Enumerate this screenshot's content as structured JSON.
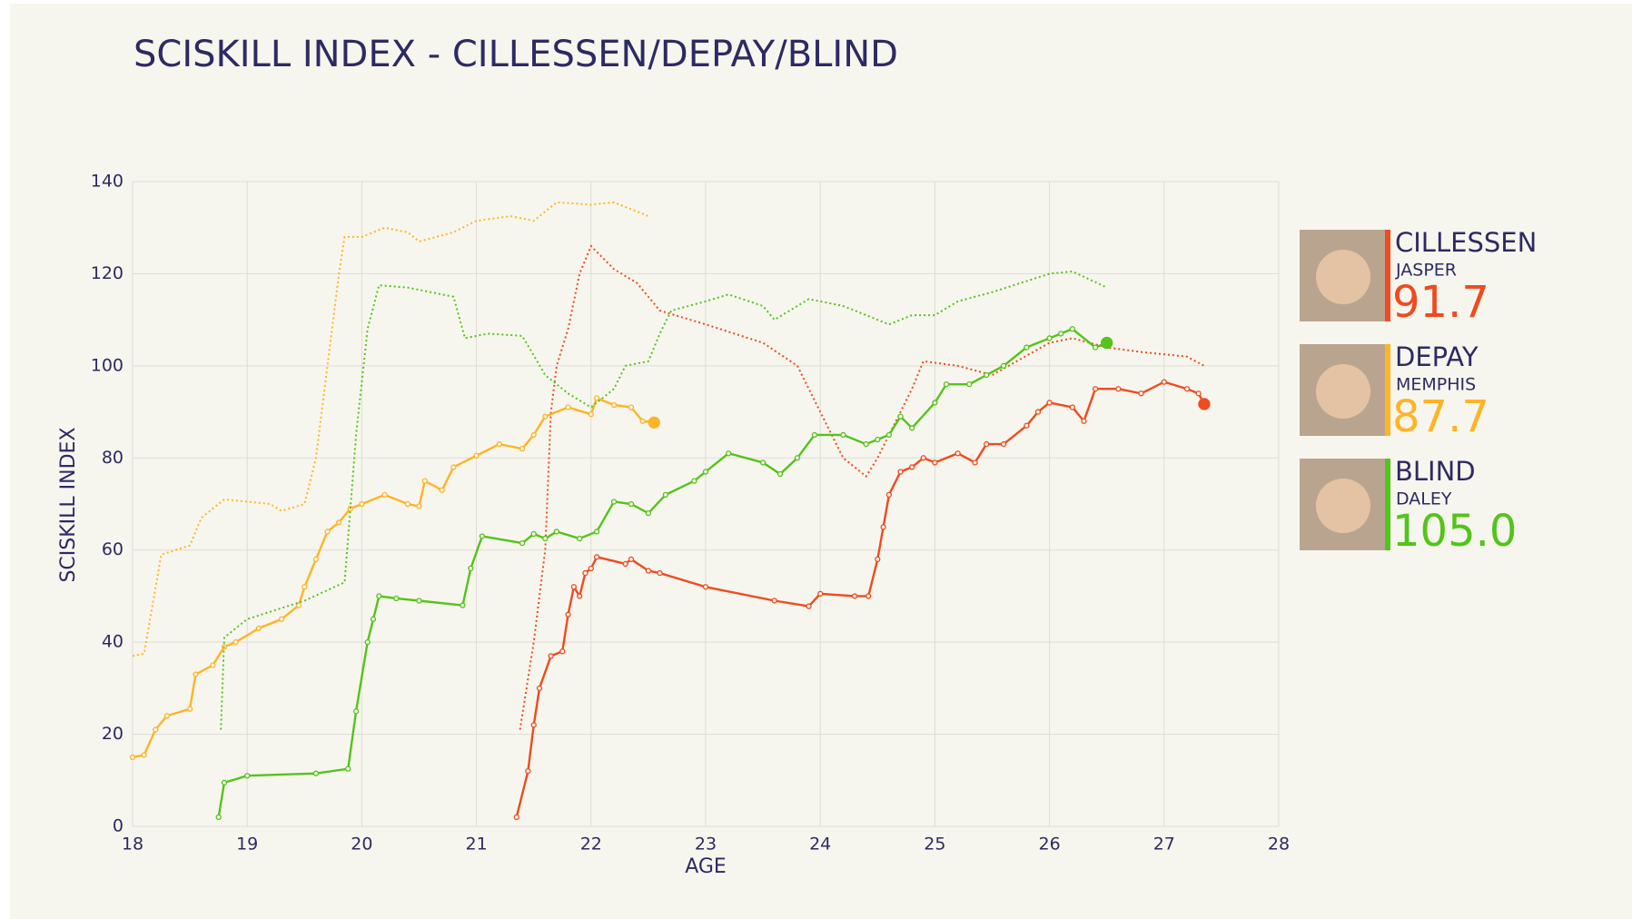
{
  "chart_data": {
    "type": "line",
    "title": "SCISKILL INDEX - CILLESSEN/DEPAY/BLIND",
    "x_label": "AGE",
    "y_label": "SCISKILL INDEX",
    "xlim": [
      18,
      28
    ],
    "xticks": [
      18,
      19,
      20,
      21,
      22,
      23,
      24,
      25,
      26,
      27,
      28
    ],
    "ylim": [
      0,
      140
    ],
    "yticks": [
      0,
      20,
      40,
      60,
      80,
      100,
      120,
      140
    ],
    "grid": true,
    "series": [
      {
        "color": "#f04a1e",
        "style": "solid",
        "x": [
          21.35,
          21.45,
          21.5,
          21.55,
          21.65,
          21.75,
          21.8,
          21.85,
          21.9,
          21.95,
          22.0,
          22.05,
          22.3,
          22.35,
          22.5,
          22.6,
          23.0,
          23.6,
          23.9,
          24.0,
          24.3,
          24.42,
          24.5,
          24.55,
          24.6,
          24.7,
          24.8,
          24.9,
          25.0,
          25.2,
          25.35,
          25.45,
          25.6,
          25.8,
          25.9,
          26.0,
          26.2,
          26.3,
          26.4,
          26.6,
          26.8,
          27.0,
          27.2,
          27.3,
          27.35
        ],
        "values": [
          2,
          12,
          22,
          30,
          37,
          38,
          46,
          52,
          50,
          55,
          56,
          58.5,
          57,
          58,
          55.5,
          55,
          52,
          49,
          47.8,
          50.5,
          50,
          50,
          58,
          65,
          72,
          77,
          78,
          80,
          79,
          81,
          79,
          83,
          83,
          87,
          90,
          92,
          91,
          88,
          95,
          95,
          94,
          96.5,
          95,
          94,
          91.7
        ]
      },
      {
        "color": "#f04a1e",
        "style": "dotted",
        "x": [
          21.38,
          21.5,
          21.6,
          21.65,
          21.7,
          21.8,
          21.9,
          22.0,
          22.2,
          22.4,
          22.6,
          23.0,
          23.5,
          23.8,
          24.0,
          24.2,
          24.4,
          24.5,
          24.6,
          24.8,
          24.9,
          25.2,
          25.5,
          26.0,
          26.2,
          26.5,
          26.8,
          27.2,
          27.35
        ],
        "values": [
          21,
          40,
          60,
          90,
          100,
          108,
          120,
          126,
          121,
          118,
          112,
          109,
          105,
          100,
          90,
          80,
          76,
          80,
          85,
          95,
          101,
          100,
          98,
          105,
          106,
          104,
          103,
          102,
          100
        ]
      },
      {
        "color": "#ffb326",
        "style": "solid",
        "x": [
          18.0,
          18.1,
          18.2,
          18.3,
          18.5,
          18.55,
          18.7,
          18.8,
          18.9,
          19.1,
          19.3,
          19.45,
          19.5,
          19.6,
          19.7,
          19.8,
          19.9,
          20.0,
          20.2,
          20.4,
          20.5,
          20.55,
          20.7,
          20.8,
          21.0,
          21.2,
          21.4,
          21.5,
          21.6,
          21.8,
          22.0,
          22.05,
          22.2,
          22.35,
          22.45,
          22.55
        ],
        "values": [
          15,
          15.5,
          21,
          24,
          25.5,
          33,
          35,
          39,
          40,
          43,
          45,
          48,
          52,
          58,
          64,
          66,
          69,
          70,
          72,
          70,
          69.5,
          75,
          73,
          78,
          80.5,
          83,
          82,
          85,
          89,
          91,
          89.5,
          93,
          91.5,
          91,
          88,
          87.7
        ]
      },
      {
        "color": "#ffb326",
        "style": "dotted",
        "x": [
          18.0,
          18.1,
          18.25,
          18.5,
          18.6,
          18.8,
          19.0,
          19.2,
          19.3,
          19.5,
          19.6,
          19.7,
          19.8,
          19.85,
          20.0,
          20.2,
          20.4,
          20.5,
          20.8,
          21.0,
          21.3,
          21.5,
          21.7,
          22.0,
          22.2,
          22.5
        ],
        "values": [
          37,
          37.5,
          59,
          61,
          67,
          71,
          70.5,
          70,
          68.5,
          70,
          80,
          100,
          120,
          128,
          128,
          130,
          129,
          127,
          129,
          131.5,
          132.5,
          131.5,
          135.5,
          135,
          135.5,
          132.5
        ]
      },
      {
        "color": "#52c41a",
        "style": "solid",
        "x": [
          18.75,
          18.8,
          19.0,
          19.6,
          19.88,
          19.95,
          20.05,
          20.1,
          20.15,
          20.3,
          20.5,
          20.88,
          20.95,
          21.05,
          21.4,
          21.5,
          21.6,
          21.7,
          21.9,
          22.05,
          22.2,
          22.35,
          22.5,
          22.65,
          22.9,
          23.0,
          23.2,
          23.5,
          23.65,
          23.8,
          23.95,
          24.2,
          24.4,
          24.5,
          24.6,
          24.7,
          24.8,
          25.0,
          25.1,
          25.3,
          25.45,
          25.6,
          25.8,
          26.0,
          26.1,
          26.2,
          26.4,
          26.5
        ],
        "values": [
          2,
          9.5,
          11,
          11.5,
          12.5,
          25,
          40,
          45,
          50,
          49.5,
          49,
          48,
          56,
          63,
          61.5,
          63.5,
          62.5,
          64,
          62.5,
          64,
          70.5,
          70,
          68,
          72,
          75,
          77,
          81,
          79,
          76.5,
          80,
          85,
          85,
          83,
          84,
          85,
          89,
          86.5,
          92,
          96,
          96,
          98,
          100,
          104,
          106,
          107,
          108,
          104,
          105
        ]
      },
      {
        "color": "#52c41a",
        "style": "dotted",
        "x": [
          18.77,
          18.8,
          19.0,
          19.5,
          19.85,
          19.95,
          20.05,
          20.15,
          20.4,
          20.6,
          20.8,
          20.9,
          21.1,
          21.4,
          21.6,
          21.8,
          22.0,
          22.2,
          22.3,
          22.5,
          22.6,
          22.7,
          23.0,
          23.2,
          23.5,
          23.6,
          23.9,
          24.2,
          24.4,
          24.6,
          24.8,
          25.0,
          25.2,
          25.5,
          26.0,
          26.2,
          26.5
        ],
        "values": [
          21,
          41,
          45,
          49,
          53,
          85,
          108,
          117.5,
          117,
          116,
          115,
          106,
          107,
          106.5,
          98,
          94,
          91,
          95,
          100,
          101,
          107,
          112,
          114,
          115.5,
          113,
          110,
          114.5,
          113,
          111,
          109,
          111,
          111,
          114,
          116,
          120,
          120.5,
          117
        ]
      }
    ],
    "players": [
      {
        "surname": "CILLESSEN",
        "first_name": "JASPER",
        "score": 91.7,
        "color": "#f04a1e"
      },
      {
        "surname": "DEPAY",
        "first_name": "MEMPHIS",
        "score": 87.7,
        "color": "#ffb326"
      },
      {
        "surname": "BLIND",
        "first_name": "DALEY",
        "score": {
          "value": 105,
          "label": "105.0"
        },
        "color": "#52c41a"
      }
    ]
  }
}
